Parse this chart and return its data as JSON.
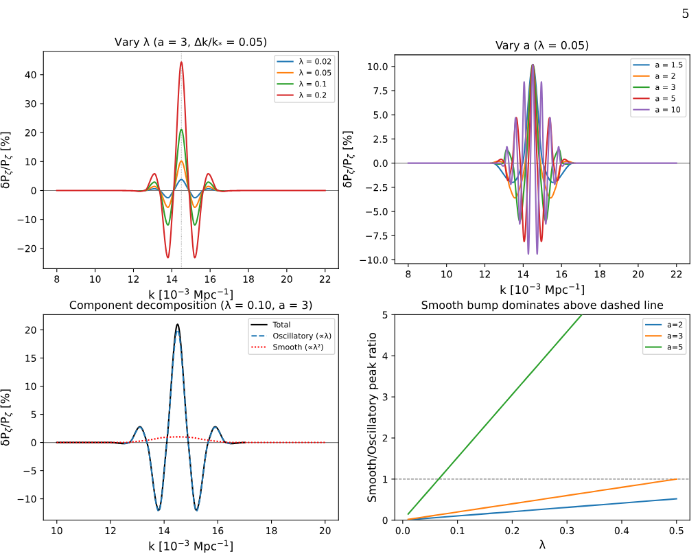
{
  "chart_data": [
    {
      "type": "line",
      "title": "Vary λ (a = 3, Δk/k$_{*}$ = 0.05)",
      "xlabel": "k [10$^{−3}$ Mpc$^{−1}$]",
      "ylabel": "δP$_{ζ}$/P$_{ζ}$ [%]",
      "x": [
        8,
        11,
        12,
        12.3,
        12.6,
        13.1,
        13.36,
        13.8,
        14.1,
        14.5,
        14.9,
        15.2,
        15.64,
        15.9,
        16.4,
        16.7,
        17,
        18,
        22
      ],
      "series": [
        {
          "name": "λ = 0.02",
          "color": "#1f77b4",
          "values": [
            null,
            null,
            null,
            null,
            0,
            0.6,
            0,
            -2.5,
            0,
            3.8,
            0,
            -2.5,
            0,
            0.6,
            0,
            null,
            null,
            null,
            null
          ]
        },
        {
          "name": "λ = 0.05",
          "color": "#ff7f0e",
          "values": [
            null,
            null,
            null,
            null,
            0,
            1.4,
            0,
            -5.8,
            0,
            10.2,
            0,
            -5.8,
            0,
            1.4,
            0,
            null,
            null,
            null,
            null
          ]
        },
        {
          "name": "λ = 0.1",
          "color": "#2ca02c",
          "values": [
            null,
            null,
            null,
            -0.2,
            0,
            2.9,
            0,
            -11.9,
            0,
            21.1,
            0,
            -11.9,
            0,
            2.9,
            0,
            -0.2,
            null,
            null,
            null
          ]
        },
        {
          "name": "λ = 0.2",
          "color": "#d62728",
          "values": [
            0,
            0,
            -0.1,
            -0.3,
            0,
            5.8,
            0,
            -23.2,
            0,
            44.4,
            0,
            -23.2,
            0,
            5.8,
            0,
            -0.3,
            -0.1,
            0,
            0
          ]
        }
      ],
      "xlim": [
        7.3,
        22.7
      ],
      "xticks": [
        8,
        10,
        12,
        14,
        16,
        18,
        20,
        22
      ],
      "ylim": [
        -27,
        48
      ],
      "yticks": [
        {
          "value": -20,
          "label": "−20"
        },
        {
          "value": -10,
          "label": "−10"
        },
        0,
        10,
        20,
        30,
        40
      ],
      "ref_lines": [
        {
          "axis": "y",
          "value": 0,
          "color": "#808080",
          "line_style": "solid"
        },
        {
          "axis": "x",
          "value": 14.5,
          "color": "#b0b0b0",
          "line_style": "dotted"
        }
      ],
      "legend": "top right",
      "grid": false,
      "marker": "none",
      "line_style": "solid"
    },
    {
      "type": "line",
      "title": "Vary a (λ = 0.05)",
      "xlabel": "k [10$^{−3}$ Mpc$^{−1}$]",
      "ylabel": "δP$_{ζ}$/P$_{ζ}$ [%]",
      "series": [
        {
          "name": "a = 1.5",
          "color": "#1f77b4",
          "x": [
            12.4,
            13.45,
            13.97,
            14.5,
            15.03,
            15.55,
            16.6
          ],
          "values": [
            0,
            -2.0,
            0,
            10.2,
            0,
            -2.0,
            0
          ]
        },
        {
          "name": "a = 2",
          "color": "#ff7f0e",
          "x": [
            12.3,
            12.7,
            13.0,
            13.3,
            13.57,
            13.85,
            14.1,
            14.5,
            14.9,
            15.15,
            15.43,
            15.7,
            16.0,
            16.3,
            16.7
          ],
          "values": [
            0,
            0.2,
            0,
            -2.5,
            -3.6,
            -2.4,
            0,
            10.2,
            0,
            -2.4,
            -3.6,
            -2.5,
            0,
            0.2,
            0
          ]
        },
        {
          "name": "a = 3",
          "color": "#2ca02c",
          "x": [
            12.4,
            12.75,
            12.95,
            13.13,
            13.45,
            13.82,
            14.15,
            14.5,
            14.85,
            15.18,
            15.55,
            15.88,
            16.05,
            16.25,
            16.6
          ],
          "values": [
            0,
            -0.1,
            0,
            1.4,
            0,
            -6.0,
            0,
            10.2,
            0,
            -6.0,
            0,
            1.4,
            0,
            -0.1,
            0
          ]
        },
        {
          "name": "a = 5",
          "color": "#d62728",
          "x": [
            12.5,
            12.85,
            13.02,
            13.2,
            13.42,
            13.64,
            13.85,
            14.05,
            14.27,
            14.5,
            14.73,
            14.95,
            15.17,
            15.38,
            15.58,
            15.8,
            15.98,
            16.15,
            16.5
          ],
          "values": [
            0,
            0.4,
            0,
            -1.8,
            0,
            4.7,
            0,
            -8.1,
            0,
            10.2,
            0,
            -8.1,
            0,
            4.7,
            0,
            -1.8,
            0,
            0.4,
            0
          ]
        },
        {
          "name": "a = 10",
          "color": "#9467bd",
          "x": [
            8,
            12.8,
            12.95,
            13.05,
            13.15,
            13.25,
            13.35,
            13.48,
            13.6,
            13.71,
            13.82,
            13.94,
            14.05,
            14.16,
            14.27,
            14.38,
            14.5,
            14.62,
            14.73,
            14.84,
            14.95,
            15.06,
            15.18,
            15.29,
            15.4,
            15.52,
            15.65,
            15.75,
            15.85,
            15.95,
            16.05,
            16.2,
            22
          ],
          "values": [
            0,
            0,
            -0.3,
            0,
            1.7,
            0,
            -2.2,
            0,
            4.7,
            0,
            -6.3,
            0,
            8.4,
            0,
            -9.4,
            0,
            10.2,
            0,
            -9.4,
            0,
            8.4,
            0,
            -6.3,
            0,
            4.7,
            0,
            -2.2,
            0,
            1.7,
            0,
            -0.3,
            0,
            0
          ]
        }
      ],
      "xlim": [
        7.3,
        22.7
      ],
      "xticks": [
        8,
        10,
        12,
        14,
        16,
        18,
        20,
        22
      ],
      "ylim": [
        -10.4,
        11.2
      ],
      "yticks": [
        {
          "value": -10,
          "label": "−10.0"
        },
        {
          "value": -7.5,
          "label": "−7.5"
        },
        {
          "value": -5,
          "label": "−5.0"
        },
        {
          "value": -2.5,
          "label": "−2.5"
        },
        {
          "value": 0,
          "label": "0.0"
        },
        2.5,
        {
          "value": 5,
          "label": "5.0"
        },
        7.5,
        {
          "value": 10,
          "label": "10.0"
        }
      ],
      "ref_lines": [
        {
          "axis": "y",
          "value": 0,
          "color": "#808080",
          "line_style": "solid"
        }
      ],
      "annotations": [
        "5"
      ],
      "legend": "top right",
      "grid": false,
      "marker": "none",
      "line_style": "solid"
    },
    {
      "type": "line",
      "title": "Component decomposition (λ = 0.10, a = 3)",
      "xlabel": "k [10$^{−3}$ Mpc$^{−1}$]",
      "ylabel": "δP$_{ζ}$/P$_{ζ}$ [%]",
      "series": [
        {
          "name": "Total",
          "color": "#000000",
          "line_style": "solid",
          "x": [
            10,
            12,
            12.5,
            12.7,
            13.1,
            13.36,
            13.8,
            14.1,
            14.5,
            14.9,
            15.2,
            15.64,
            15.9,
            16.3,
            16.5,
            17
          ],
          "values": [
            0,
            0,
            -0.2,
            0,
            2.8,
            0,
            -12,
            0,
            21,
            0,
            -12,
            0,
            2.8,
            0,
            -0.2,
            0
          ]
        },
        {
          "name": "Oscillatory (∝λ)",
          "color": "#1f77b4",
          "line_style": "dashed",
          "x": [
            12.5,
            12.7,
            13.1,
            13.36,
            13.8,
            14.1,
            14.5,
            14.9,
            15.2,
            15.64,
            15.9,
            16.3,
            16.5
          ],
          "values": [
            -0.2,
            0,
            2.7,
            0,
            -12.2,
            0,
            20,
            0,
            -12.2,
            0,
            2.7,
            0,
            -0.2
          ]
        },
        {
          "name": "Smooth (∝λ²)",
          "color": "#ff0000",
          "line_style": "dotted",
          "x": [
            10,
            12.5,
            13,
            13.5,
            14,
            14.5,
            15,
            15.5,
            16,
            16.5,
            20
          ],
          "values": [
            0,
            0,
            0.2,
            0.5,
            0.9,
            1.0,
            0.9,
            0.5,
            0.2,
            0,
            0
          ]
        }
      ],
      "xlim": [
        9.5,
        20.5
      ],
      "xticks": [
        10,
        12,
        14,
        16,
        18,
        20
      ],
      "ylim": [
        -13.8,
        22.7
      ],
      "yticks": [
        {
          "value": -10,
          "label": "−10"
        },
        {
          "value": -5,
          "label": "−5"
        },
        0,
        5,
        10,
        15,
        20
      ],
      "ref_lines": [
        {
          "axis": "y",
          "value": 0,
          "color": "#808080",
          "line_style": "solid"
        }
      ],
      "legend": "top right",
      "grid": false,
      "marker": "none"
    },
    {
      "type": "line",
      "title": "Smooth bump dominates above dashed line",
      "xlabel": "λ",
      "ylabel": "Smooth/Oscillatory peak ratio",
      "series": [
        {
          "name": "a=2",
          "color": "#1f77b4",
          "x": [
            0.01,
            0.5
          ],
          "values": [
            0.01,
            0.52
          ]
        },
        {
          "name": "a=3",
          "color": "#ff7f0e",
          "x": [
            0.01,
            0.5
          ],
          "values": [
            0.02,
            1.0
          ]
        },
        {
          "name": "a=5",
          "color": "#2ca02c",
          "x": [
            0.01,
            0.327
          ],
          "values": [
            0.15,
            5.0
          ]
        }
      ],
      "xlim": [
        -0.0145,
        0.5245
      ],
      "xticks": [
        {
          "value": 0,
          "label": "0.0"
        },
        0.1,
        0.2,
        0.3,
        0.4,
        0.5
      ],
      "ylim": [
        0,
        5
      ],
      "yticks": [
        0,
        1,
        2,
        3,
        4,
        5
      ],
      "ref_lines": [
        {
          "axis": "y",
          "value": 1,
          "color": "#808080",
          "line_style": "dashed"
        }
      ],
      "legend": "top right",
      "grid": false,
      "marker": "none",
      "line_style": "solid"
    }
  ]
}
